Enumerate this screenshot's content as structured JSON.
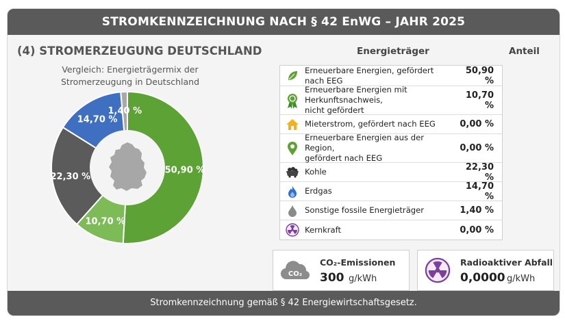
{
  "header": {
    "title": "STROMKENNZEICHNUNG NACH § 42 EnWG – JAHR 2025"
  },
  "section": {
    "title": "(4) STROMERZEUGUNG DEUTSCHLAND",
    "subtitle_line1": "Vergleich: Energieträgermix der",
    "subtitle_line2": "Stromerzeugung in Deutschland"
  },
  "table": {
    "col_energy": "Energieträger",
    "col_share": "Anteil",
    "rows": [
      {
        "label1": "Erneuerbare Energien, gefördert nach EEG",
        "label2": "",
        "value": "50,90 %",
        "icon": "leaf-icon"
      },
      {
        "label1": "Erneuerbare Energien mit Herkunftsnachweis,",
        "label2": "nicht gefördert",
        "value": "10,70 %",
        "icon": "award-icon"
      },
      {
        "label1": "Mieterstrom, gefördert nach EEG",
        "label2": "",
        "value": "0,00 %",
        "icon": "house-icon"
      },
      {
        "label1": "Erneuerbare Energien aus der Region,",
        "label2": "gefördert nach EEG",
        "value": "0,00 %",
        "icon": "location-pin-icon"
      },
      {
        "label1": "Kohle",
        "label2": "",
        "value": "22,30 %",
        "icon": "coal-cart-icon"
      },
      {
        "label1": "Erdgas",
        "label2": "",
        "value": "14,70 %",
        "icon": "flame-icon"
      },
      {
        "label1": "Sonstige fossile Energieträger",
        "label2": "",
        "value": "1,40 %",
        "icon": "oil-drop-icon"
      },
      {
        "label1": "Kernkraft",
        "label2": "",
        "value": "0,00 %",
        "icon": "radiation-icon"
      }
    ]
  },
  "co2": {
    "title": "CO₂-Emissionen",
    "value": "300",
    "unit": "g/kWh",
    "icon_text": "CO₂"
  },
  "waste": {
    "title": "Radioaktiver Abfall",
    "value": "0,0000",
    "unit": "g/kWh"
  },
  "footer": {
    "text": "Stromkennzeichnung gemäß § 42 Energiewirtschaftsgesetz."
  },
  "colors": {
    "renewable_eeg": "#5da235",
    "renewable_hkn": "#7cbb55",
    "coal": "#5b5b5b",
    "gas": "#3f6fc0",
    "other_fossil": "#a9a9a9",
    "header_bg": "#5a5a5a"
  },
  "chart_data": {
    "type": "pie",
    "title": "Vergleich: Energieträgermix der Stromerzeugung in Deutschland",
    "slices": [
      {
        "name": "Erneuerbare Energien, gefördert nach EEG",
        "value": 50.9,
        "label": "50,90 %",
        "color": "#5da235"
      },
      {
        "name": "Erneuerbare Energien mit Herkunftsnachweis, nicht gefördert",
        "value": 10.7,
        "label": "10,70 %",
        "color": "#7cbb55"
      },
      {
        "name": "Kohle",
        "value": 22.3,
        "label": "22,30 %",
        "color": "#5b5b5b"
      },
      {
        "name": "Erdgas",
        "value": 14.7,
        "label": "14,70 %",
        "color": "#3f6fc0"
      },
      {
        "name": "Sonstige fossile Energieträger",
        "value": 1.4,
        "label": "1,40 %",
        "color": "#a9a9a9"
      }
    ]
  }
}
